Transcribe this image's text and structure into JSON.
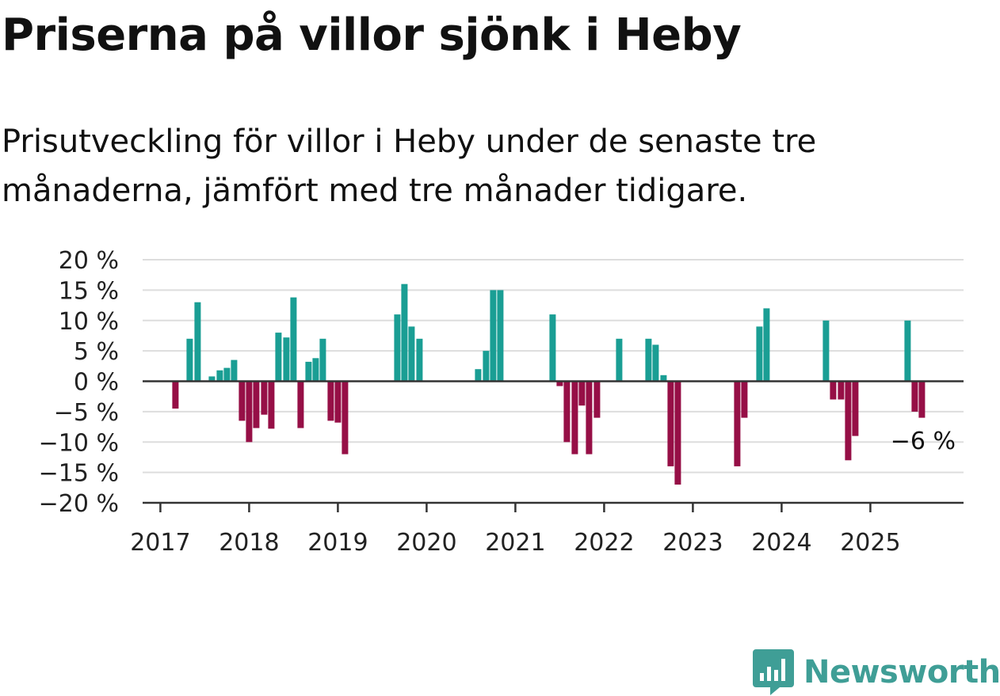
{
  "chart_data": {
    "type": "bar",
    "title": "Priserna på villor sjönk i Heby",
    "subtitle": "Prisutveckling för villor i Heby under de senaste tre månaderna, jämfört med tre månader tidigare.",
    "x_tick_labels": [
      "2017",
      "2018",
      "2019",
      "2020",
      "2021",
      "2022",
      "2023",
      "2024",
      "2025"
    ],
    "y_tick_labels": [
      "20 %",
      "15 %",
      "10 %",
      "5 %",
      "0 %",
      "−5 %",
      "−10 %",
      "−15 %",
      "−20 %"
    ],
    "y_ticks": [
      20,
      15,
      10,
      5,
      0,
      -5,
      -10,
      -15,
      -20
    ],
    "ylim": [
      -20,
      20
    ],
    "xlim": [
      2016.8,
      2026.05
    ],
    "grid": true,
    "colors": {
      "positive": "#1a9e94",
      "negative": "#960f46",
      "grid": "#dddddd",
      "axis": "#333333"
    },
    "end_label": "−6 %",
    "series": [
      {
        "values": [
          {
            "x": 2017.17,
            "y": -4.5
          },
          {
            "x": 2017.33,
            "y": 7
          },
          {
            "x": 2017.42,
            "y": 13
          },
          {
            "x": 2017.58,
            "y": 0.8
          },
          {
            "x": 2017.67,
            "y": 1.8
          },
          {
            "x": 2017.75,
            "y": 2.2
          },
          {
            "x": 2017.83,
            "y": 3.5
          },
          {
            "x": 2017.92,
            "y": -6.5
          },
          {
            "x": 2018.0,
            "y": -10
          },
          {
            "x": 2018.08,
            "y": -7.7
          },
          {
            "x": 2018.17,
            "y": -5.5
          },
          {
            "x": 2018.25,
            "y": -7.8
          },
          {
            "x": 2018.33,
            "y": 8
          },
          {
            "x": 2018.42,
            "y": 7.2
          },
          {
            "x": 2018.5,
            "y": 13.8
          },
          {
            "x": 2018.58,
            "y": -7.7
          },
          {
            "x": 2018.67,
            "y": 3.2
          },
          {
            "x": 2018.75,
            "y": 3.8
          },
          {
            "x": 2018.83,
            "y": 7
          },
          {
            "x": 2018.92,
            "y": -6.5
          },
          {
            "x": 2019.0,
            "y": -6.8
          },
          {
            "x": 2019.08,
            "y": -12
          },
          {
            "x": 2019.67,
            "y": 11
          },
          {
            "x": 2019.75,
            "y": 16
          },
          {
            "x": 2019.83,
            "y": 9
          },
          {
            "x": 2019.92,
            "y": 7
          },
          {
            "x": 2020.58,
            "y": 2
          },
          {
            "x": 2020.67,
            "y": 5
          },
          {
            "x": 2020.75,
            "y": 15
          },
          {
            "x": 2020.83,
            "y": 15
          },
          {
            "x": 2021.42,
            "y": 11
          },
          {
            "x": 2021.5,
            "y": -0.8
          },
          {
            "x": 2021.58,
            "y": -10
          },
          {
            "x": 2021.67,
            "y": -12
          },
          {
            "x": 2021.75,
            "y": -4
          },
          {
            "x": 2021.83,
            "y": -12
          },
          {
            "x": 2021.92,
            "y": -6
          },
          {
            "x": 2022.17,
            "y": 7
          },
          {
            "x": 2022.5,
            "y": 7
          },
          {
            "x": 2022.58,
            "y": 6
          },
          {
            "x": 2022.67,
            "y": 1
          },
          {
            "x": 2022.75,
            "y": -14
          },
          {
            "x": 2022.83,
            "y": -17
          },
          {
            "x": 2023.5,
            "y": -14
          },
          {
            "x": 2023.58,
            "y": -6
          },
          {
            "x": 2023.75,
            "y": 9
          },
          {
            "x": 2023.83,
            "y": 12
          },
          {
            "x": 2024.5,
            "y": 10
          },
          {
            "x": 2024.58,
            "y": -3
          },
          {
            "x": 2024.67,
            "y": -3
          },
          {
            "x": 2024.75,
            "y": -13
          },
          {
            "x": 2024.83,
            "y": -9
          },
          {
            "x": 2025.42,
            "y": 10
          },
          {
            "x": 2025.5,
            "y": -5
          },
          {
            "x": 2025.58,
            "y": -6
          }
        ]
      }
    ]
  },
  "brand": {
    "name": "Newsworthy",
    "logo_icon": "newsworthy-bar-chart-icon",
    "color": "#3f9e96"
  }
}
